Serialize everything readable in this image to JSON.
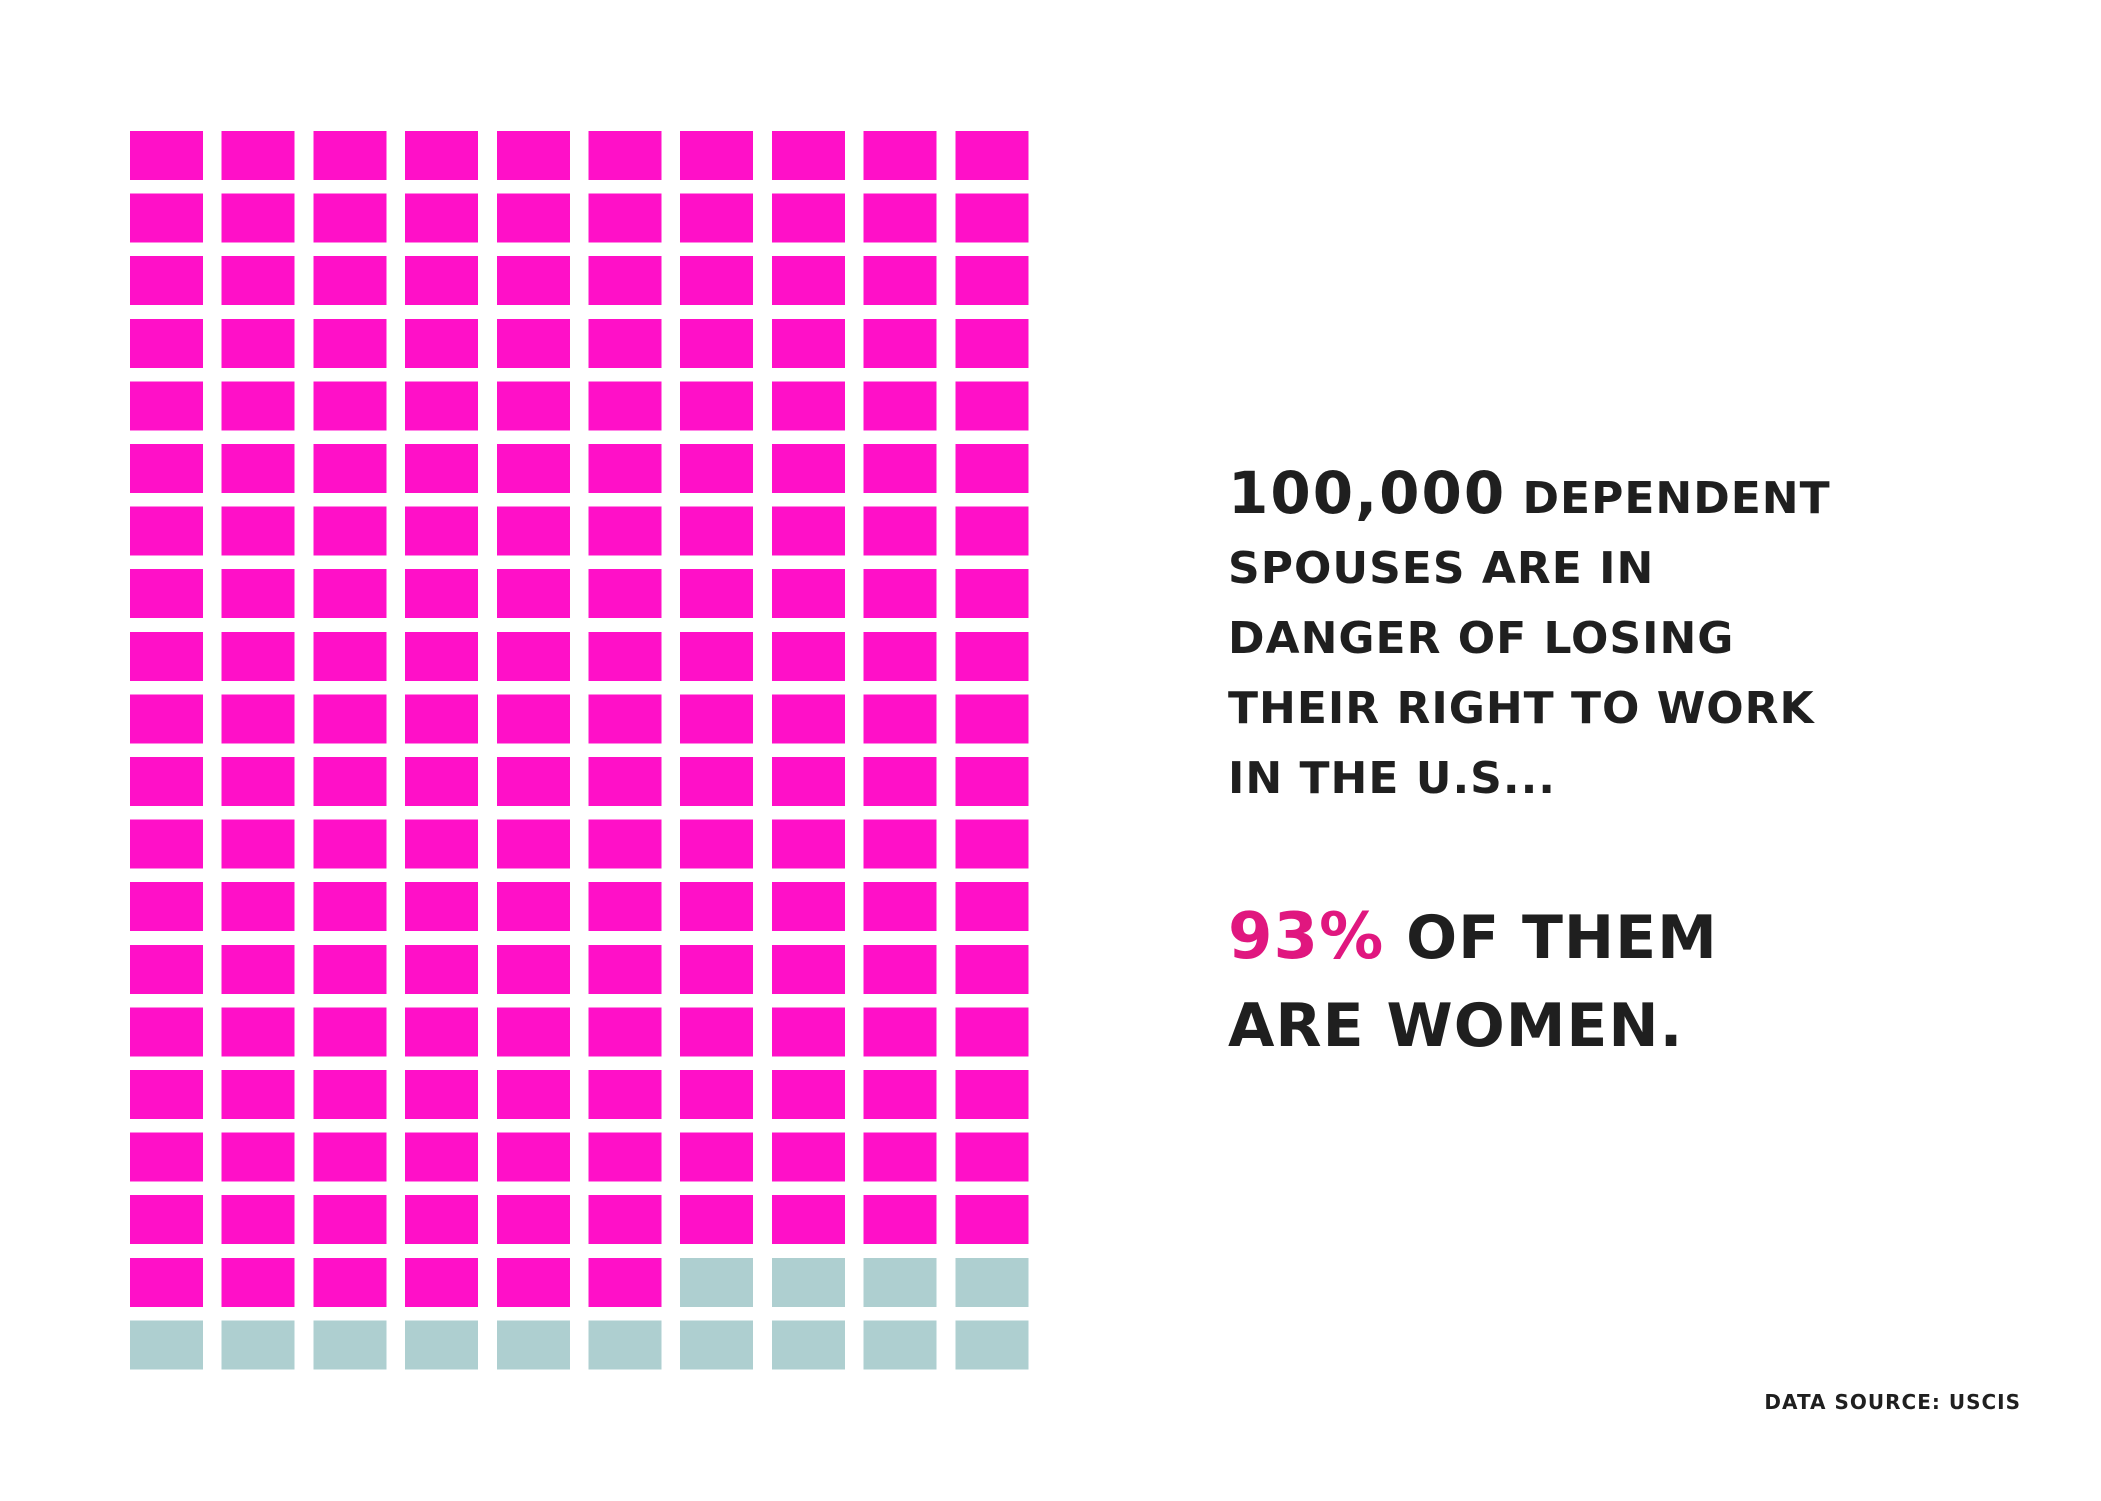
{
  "chart_data": {
    "type": "waffle",
    "total_units": 200,
    "columns": 10,
    "rows": 20,
    "series": [
      {
        "value": 186,
        "color": "#ff10c8"
      },
      {
        "value": 14,
        "color": "#aecfd0"
      }
    ]
  },
  "headline": {
    "line1_number": "100,000",
    "line1_rest": "dependent",
    "line2": "spouses are in",
    "line3": "danger of losing",
    "line4": "their right to work",
    "line5": "in the u.s..."
  },
  "highlight": {
    "percent": "93%",
    "line1_rest": "of them",
    "line2": "are women."
  },
  "source": "Data source: USCIS"
}
